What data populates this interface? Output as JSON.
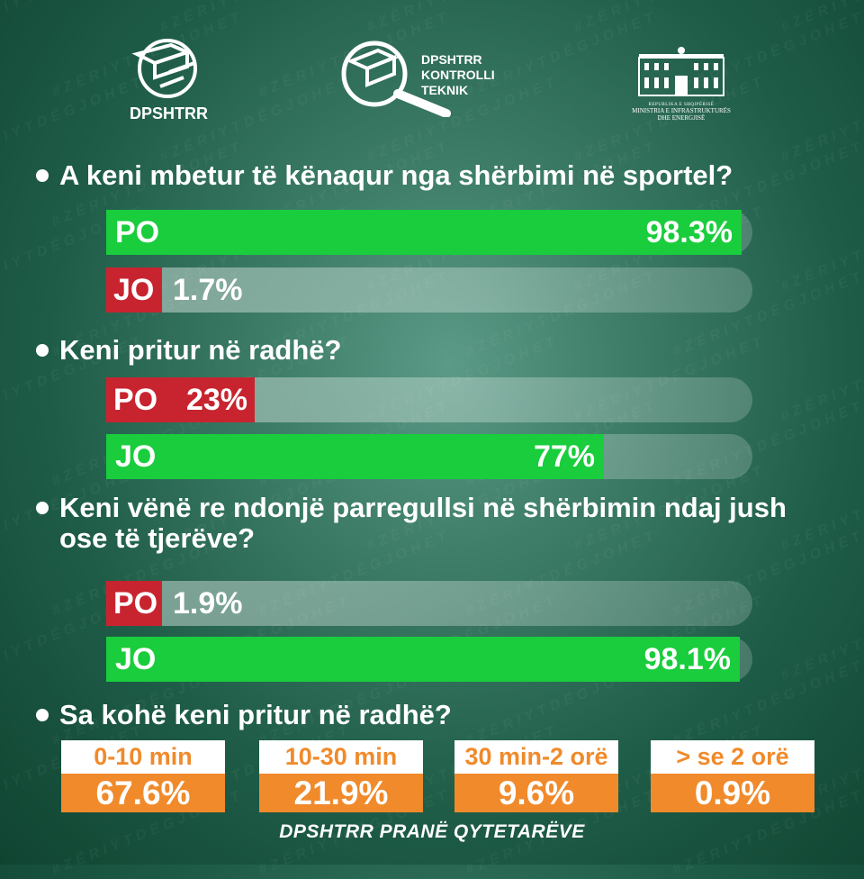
{
  "header": {
    "logo_left_text": "DPSHTRR",
    "logo_center_text": [
      "DPSHTRR",
      "KONTROLLI",
      "TEKNIK"
    ],
    "logo_right_text": [
      "REPUBLIKA E SHQIPËRISË",
      "MINISTRIA E INFRASTRUKTURËS",
      "DHE ENERGJISË"
    ]
  },
  "watermark": "#ZËRIYTDËGJOHET",
  "chart_data": [
    {
      "type": "bar",
      "title": "A keni mbetur të kënaqur nga shërbimi në sportel?",
      "categories": [
        "PO",
        "JO"
      ],
      "values": [
        98.3,
        1.7
      ],
      "value_labels": [
        "98.3%",
        "1.7%"
      ],
      "colors": [
        "#19cd3c",
        "#c8242f"
      ],
      "ylim": [
        0,
        100
      ]
    },
    {
      "type": "bar",
      "title": "Keni pritur në radhë?",
      "categories": [
        "PO",
        "JO"
      ],
      "values": [
        23,
        77
      ],
      "value_labels": [
        "23%",
        "77%"
      ],
      "colors": [
        "#c8242f",
        "#19cd3c"
      ],
      "ylim": [
        0,
        100
      ]
    },
    {
      "type": "bar",
      "title": "Keni vënë re ndonjë parregullsi në shërbimin ndaj jush ose të tjerëve?",
      "categories": [
        "PO",
        "JO"
      ],
      "values": [
        1.9,
        98.1
      ],
      "value_labels": [
        "1.9%",
        "98.1%"
      ],
      "colors": [
        "#c8242f",
        "#19cd3c"
      ],
      "ylim": [
        0,
        100
      ]
    },
    {
      "type": "table",
      "title": "Sa kohë keni pritur në radhë?",
      "categories": [
        "0-10 min",
        "10-30 min",
        "30 min-2 orë",
        "> se 2 orë"
      ],
      "values": [
        67.6,
        21.9,
        9.6,
        0.9
      ],
      "value_labels": [
        "67.6%",
        "21.9%",
        "9.6%",
        "0.9%"
      ],
      "colors": [
        "#f08a2b",
        "#ffffff"
      ]
    }
  ],
  "footer": "DPSHTRR PRANË QYTETARËVE"
}
